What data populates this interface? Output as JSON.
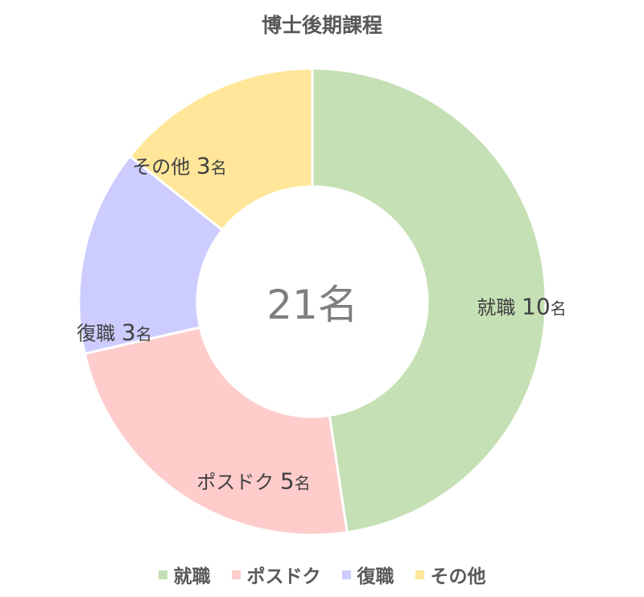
{
  "chart_data": {
    "type": "pie",
    "title": "博士後期課程",
    "center_label": "21名",
    "unit": "名",
    "categories": [
      "就職",
      "ポスドク",
      "復職",
      "その他"
    ],
    "values": [
      10,
      5,
      3,
      3
    ],
    "colors": [
      "#C5E0B4",
      "#FFCCCC",
      "#CCCCFF",
      "#FFE699"
    ],
    "legend_position": "bottom",
    "donut": true
  }
}
